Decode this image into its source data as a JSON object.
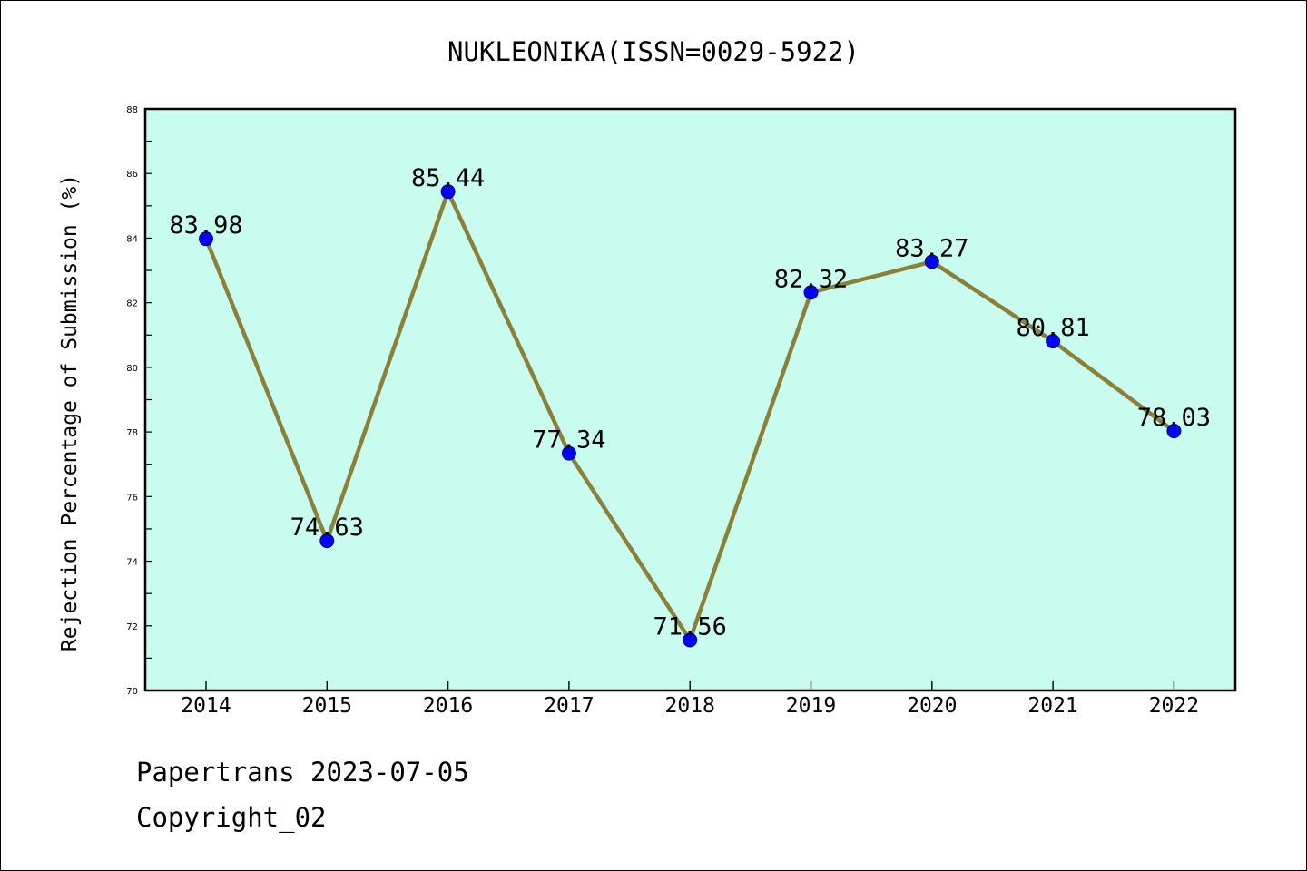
{
  "chart_data": {
    "type": "line",
    "title": "NUKLEONIKA(ISSN=0029-5922)",
    "xlabel": "",
    "ylabel": "Rejection Percentage of Submission (%)",
    "categories": [
      "2014",
      "2015",
      "2016",
      "2017",
      "2018",
      "2019",
      "2020",
      "2021",
      "2022"
    ],
    "series": [
      {
        "values": [
          83.98,
          74.63,
          85.44,
          77.34,
          71.56,
          82.32,
          83.27,
          80.81,
          78.03
        ],
        "labels": [
          "83.98",
          "74.63",
          "85.44",
          "77.34",
          "71.56",
          "82.32",
          "83.27",
          "80.81",
          "78.03"
        ]
      }
    ],
    "ylim": [
      70,
      88
    ],
    "y_ticks": [
      "70",
      "72",
      "74",
      "76",
      "78",
      "80",
      "82",
      "84",
      "86",
      "88"
    ],
    "grid": false,
    "legend": "none",
    "colors": {
      "plot_background": "#c8fcee",
      "line": "#8b8035",
      "marker": "#0000ff"
    }
  },
  "footer": {
    "line1": "Papertrans 2023-07-05",
    "line2": "Copyright_02"
  }
}
